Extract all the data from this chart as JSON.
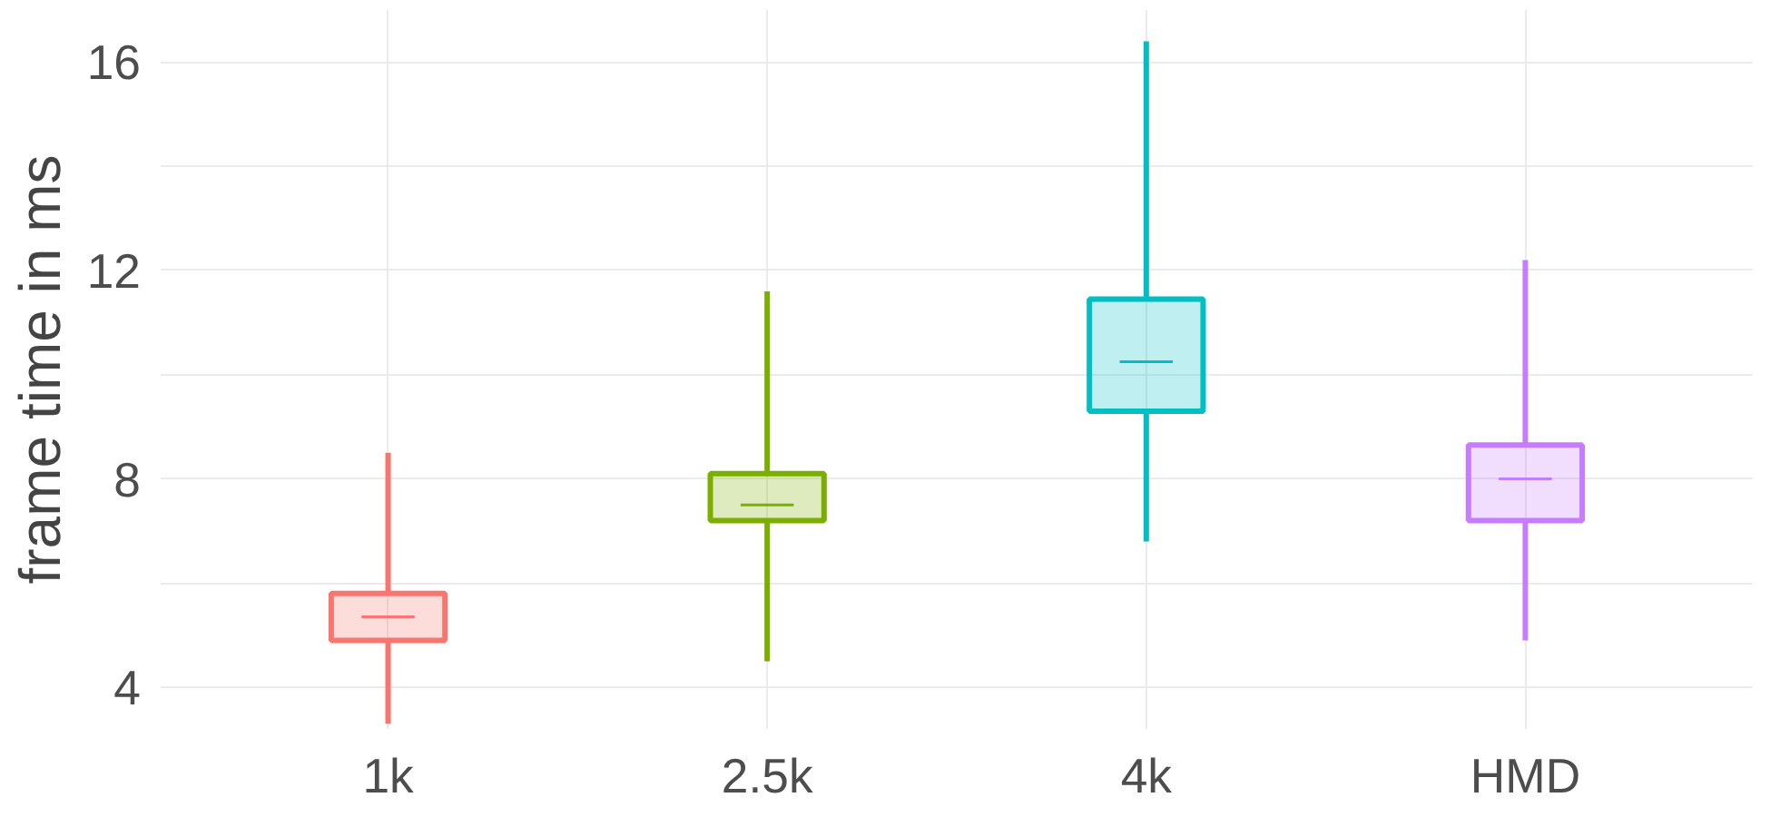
{
  "chart_data": {
    "type": "box",
    "ylabel": "frame time in ms",
    "categories": [
      "1k",
      "2.5k",
      "4k",
      "HMD"
    ],
    "colors": [
      "#f8766d",
      "#7cae00",
      "#00bfc4",
      "#c77cff"
    ],
    "boxes": [
      {
        "low": 3.3,
        "q1": 4.9,
        "median": 5.35,
        "q3": 5.8,
        "high": 8.5
      },
      {
        "low": 4.5,
        "q1": 7.2,
        "median": 7.5,
        "q3": 8.1,
        "high": 11.6
      },
      {
        "low": 6.8,
        "q1": 9.3,
        "median": 10.25,
        "q3": 11.45,
        "high": 16.4
      },
      {
        "low": 4.9,
        "q1": 7.2,
        "median": 8.0,
        "q3": 8.65,
        "high": 12.2
      }
    ],
    "ylim": [
      3.2,
      17.0
    ],
    "yticks": [
      4,
      {
        "value": 6,
        "label": null
      },
      8,
      {
        "value": 10,
        "label": null
      },
      12,
      {
        "value": 14,
        "label": null
      },
      16
    ],
    "grid": true
  }
}
